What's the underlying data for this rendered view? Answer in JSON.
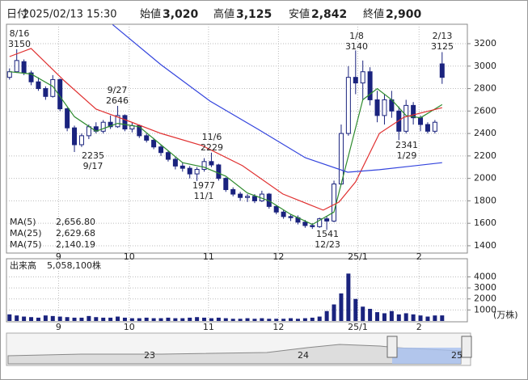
{
  "header": {
    "date_label": "日付",
    "date": "2025/02/13 15:30",
    "items": [
      {
        "label": "始値",
        "value": "3,020",
        "color": "#000"
      },
      {
        "label": "高値",
        "value": "3,125",
        "color": "#d00000"
      },
      {
        "label": "安値",
        "value": "2,842",
        "color": "#008000"
      },
      {
        "label": "終値",
        "value": "2,900",
        "color": "#000"
      }
    ]
  },
  "chart_data": [
    {
      "type": "candlestick",
      "up_color": "#ffffff",
      "down_color": "#1a237e",
      "outline": "#1a237e",
      "ylim": [
        1342,
        3373
      ],
      "yticks": [
        1400,
        1600,
        1800,
        2000,
        2200,
        2400,
        2600,
        2800,
        3000,
        3200
      ],
      "xlim": [
        -0.2,
        63.5
      ],
      "xticks": [
        {
          "value": 6.8,
          "label": "9"
        },
        {
          "value": 16.6,
          "label": "10"
        },
        {
          "value": 27.6,
          "label": "11"
        },
        {
          "value": 37.3,
          "label": "12"
        },
        {
          "value": 48.3,
          "label": "25/1"
        },
        {
          "value": 56.8,
          "label": "2"
        }
      ],
      "grid": true,
      "ohlc": [
        [
          2900,
          2980,
          2880,
          2950
        ],
        [
          2950,
          3150,
          2940,
          3050
        ],
        [
          3040,
          3060,
          2920,
          2940
        ],
        [
          2940,
          2960,
          2830,
          2860
        ],
        [
          2860,
          2900,
          2780,
          2800
        ],
        [
          2800,
          2820,
          2700,
          2730
        ],
        [
          2730,
          2920,
          2720,
          2880
        ],
        [
          2880,
          2890,
          2600,
          2620
        ],
        [
          2620,
          2630,
          2420,
          2450
        ],
        [
          2450,
          2470,
          2235,
          2300
        ],
        [
          2300,
          2400,
          2280,
          2380
        ],
        [
          2380,
          2480,
          2350,
          2460
        ],
        [
          2460,
          2500,
          2400,
          2420
        ],
        [
          2420,
          2520,
          2400,
          2500
        ],
        [
          2500,
          2560,
          2440,
          2460
        ],
        [
          2460,
          2646,
          2450,
          2560
        ],
        [
          2560,
          2570,
          2420,
          2440
        ],
        [
          2440,
          2500,
          2410,
          2470
        ],
        [
          2470,
          2480,
          2360,
          2380
        ],
        [
          2380,
          2400,
          2320,
          2340
        ],
        [
          2340,
          2360,
          2260,
          2280
        ],
        [
          2280,
          2300,
          2200,
          2230
        ],
        [
          2230,
          2250,
          2150,
          2170
        ],
        [
          2170,
          2190,
          2080,
          2110
        ],
        [
          2110,
          2140,
          2060,
          2090
        ],
        [
          2090,
          2110,
          2000,
          2040
        ],
        [
          2040,
          2100,
          1977,
          2080
        ],
        [
          2080,
          2180,
          2060,
          2150
        ],
        [
          2150,
          2229,
          2100,
          2120
        ],
        [
          2120,
          2130,
          1980,
          2000
        ],
        [
          2000,
          2010,
          1880,
          1900
        ],
        [
          1900,
          1920,
          1840,
          1860
        ],
        [
          1860,
          1880,
          1800,
          1830
        ],
        [
          1830,
          1860,
          1790,
          1840
        ],
        [
          1840,
          1860,
          1780,
          1800
        ],
        [
          1800,
          1890,
          1790,
          1860
        ],
        [
          1860,
          1870,
          1730,
          1750
        ],
        [
          1750,
          1760,
          1680,
          1700
        ],
        [
          1700,
          1720,
          1640,
          1660
        ],
        [
          1660,
          1680,
          1620,
          1650
        ],
        [
          1650,
          1670,
          1590,
          1610
        ],
        [
          1610,
          1630,
          1560,
          1580
        ],
        [
          1580,
          1600,
          1550,
          1570
        ],
        [
          1570,
          1650,
          1560,
          1640
        ],
        [
          1640,
          1660,
          1541,
          1620
        ],
        [
          1620,
          1980,
          1610,
          1950
        ],
        [
          1950,
          2480,
          1940,
          2400
        ],
        [
          2400,
          3000,
          2380,
          2900
        ],
        [
          2900,
          3140,
          2750,
          2850
        ],
        [
          2850,
          3050,
          2700,
          2950
        ],
        [
          2950,
          2990,
          2650,
          2700
        ],
        [
          2700,
          2780,
          2500,
          2560
        ],
        [
          2560,
          2750,
          2480,
          2700
        ],
        [
          2700,
          2780,
          2540,
          2600
        ],
        [
          2600,
          2640,
          2341,
          2420
        ],
        [
          2420,
          2700,
          2400,
          2650
        ],
        [
          2650,
          2680,
          2480,
          2540
        ],
        [
          2540,
          2560,
          2420,
          2480
        ],
        [
          2480,
          2500,
          2400,
          2420
        ],
        [
          2420,
          2520,
          2400,
          2500
        ],
        [
          3020,
          3125,
          2842,
          2900
        ]
      ],
      "series": [
        {
          "name": "MA(5)",
          "color": "#2e8b2e",
          "legend_value": "2,656.80",
          "x": [
            0,
            3,
            6,
            9,
            12,
            15,
            18,
            21,
            24,
            27,
            30,
            33,
            36,
            39,
            42,
            45,
            47,
            49,
            51,
            53,
            55,
            57,
            60
          ],
          "values": [
            2950,
            2930,
            2820,
            2550,
            2420,
            2490,
            2460,
            2300,
            2140,
            2100,
            2020,
            1870,
            1800,
            1680,
            1590,
            1700,
            2200,
            2700,
            2800,
            2700,
            2560,
            2540,
            2657
          ]
        },
        {
          "name": "MA(25)",
          "color": "#e03030",
          "legend_value": "2,629.68",
          "x": [
            0,
            3,
            7.6,
            12,
            16.6,
            21,
            26.7,
            32.3,
            37.9,
            43.5,
            45.7,
            48,
            51.3,
            54.7,
            60
          ],
          "values": [
            3085,
            3157,
            2869,
            2617,
            2509,
            2401,
            2293,
            2113,
            1861,
            1717,
            1789,
            1969,
            2401,
            2545,
            2630
          ]
        },
        {
          "name": "MA(75)",
          "color": "#3344dd",
          "legend_value": "2,140.19",
          "x": [
            14.3,
            21,
            27.8,
            34.5,
            41,
            46.9,
            51.3,
            60
          ],
          "values": [
            3370,
            3013,
            2689,
            2437,
            2185,
            2055,
            2077,
            2140
          ]
        }
      ],
      "annotations": [
        {
          "date": "8/16",
          "price": 3150
        },
        {
          "date": "9/27",
          "price": 2646
        },
        {
          "date": "9/17",
          "price": 2235
        },
        {
          "date": "11/6",
          "price": 2229
        },
        {
          "date": "11/1",
          "price": 1977
        },
        {
          "date": "12/23",
          "price": 1541
        },
        {
          "date": "1/8",
          "price": 3140
        },
        {
          "date": "2/13",
          "price": 3125
        },
        {
          "date": "1/29",
          "price": 2341
        }
      ]
    },
    {
      "type": "volume",
      "label": "出来高",
      "value_label": "5,058,100株",
      "unit": "(万株)",
      "color": "#1a237e",
      "ylim": [
        0,
        5500
      ],
      "yticks": [
        1000,
        2000,
        3000,
        4000
      ],
      "xlim": [
        -0.2,
        63.5
      ],
      "xticks": [
        {
          "value": 6.8,
          "label": "9"
        },
        {
          "value": 16.6,
          "label": "10"
        },
        {
          "value": 27.6,
          "label": "11"
        },
        {
          "value": 37.3,
          "label": "12"
        },
        {
          "value": 48.3,
          "label": "25/1"
        },
        {
          "value": 56.8,
          "label": "2"
        }
      ],
      "values": [
        600,
        500,
        400,
        350,
        300,
        500,
        450,
        400,
        350,
        300,
        300,
        450,
        350,
        300,
        300,
        400,
        300,
        250,
        250,
        300,
        250,
        250,
        300,
        250,
        250,
        300,
        350,
        300,
        250,
        300,
        250,
        200,
        200,
        250,
        200,
        250,
        200,
        200,
        200,
        250,
        200,
        250,
        300,
        400,
        900,
        1500,
        2500,
        4300,
        2000,
        1300,
        1100,
        800,
        700,
        900,
        600,
        700,
        600,
        500,
        400,
        500,
        506
      ]
    }
  ],
  "navigator": {
    "labels": [
      "23",
      "24",
      "25"
    ]
  }
}
